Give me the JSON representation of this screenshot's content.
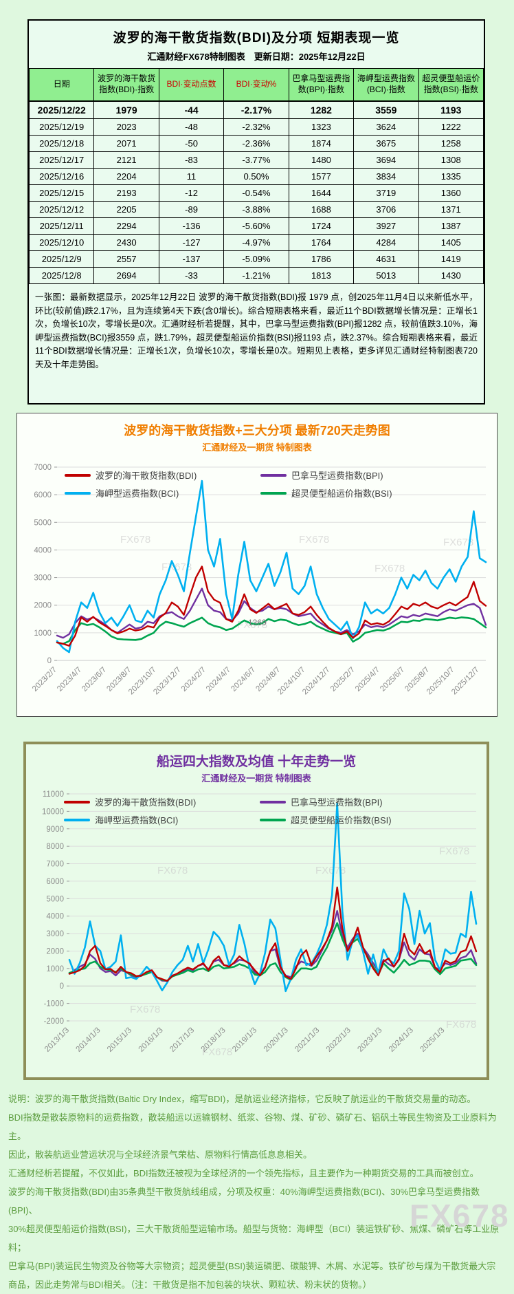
{
  "watermark": "FX678",
  "colors": {
    "page_bg": "#DFF8DF",
    "panel_bg": "#EAFBEF",
    "header_green": "#90EE90",
    "accent_red": "#CC0000",
    "title_orange": "#F07E00",
    "title_purple": "#7030A0",
    "khaki_border": "#8E8E58",
    "footer_green": "#5B9C3E",
    "bdi": "#C00000",
    "bpi": "#7030A0",
    "bci": "#00B0F0",
    "bsi": "#00A550"
  },
  "panel1": {
    "title": "波罗的海干散货指数(BDI)及分项 短期表现一览",
    "subtitle": "汇通财经FX678特制图表　更新日期：2025年12月22日",
    "table": {
      "headers": [
        "日期",
        "波罗的海干散货指数(BDI)·指数",
        "BDI·变动点数",
        "BDI·变动%",
        "巴拿马型运费指数(BPI)·指数",
        "海岬型运费指数(BCI)·指数",
        "超灵便型船运价指数(BSI)·指数"
      ],
      "red_headers": [
        2,
        3
      ],
      "rows": [
        [
          "2025/12/22",
          "1979",
          "-44",
          "-2.17%",
          "1282",
          "3559",
          "1193"
        ],
        [
          "2025/12/19",
          "2023",
          "-48",
          "-2.32%",
          "1323",
          "3624",
          "1222"
        ],
        [
          "2025/12/18",
          "2071",
          "-50",
          "-2.36%",
          "1874",
          "3675",
          "1258"
        ],
        [
          "2025/12/17",
          "2121",
          "-83",
          "-3.77%",
          "1480",
          "3694",
          "1308"
        ],
        [
          "2025/12/16",
          "2204",
          "11",
          "0.50%",
          "1577",
          "3834",
          "1335"
        ],
        [
          "2025/12/15",
          "2193",
          "-12",
          "-0.54%",
          "1644",
          "3719",
          "1360"
        ],
        [
          "2025/12/12",
          "2205",
          "-89",
          "-3.88%",
          "1688",
          "3706",
          "1371"
        ],
        [
          "2025/12/11",
          "2294",
          "-136",
          "-5.60%",
          "1724",
          "3927",
          "1387"
        ],
        [
          "2025/12/10",
          "2430",
          "-127",
          "-4.97%",
          "1764",
          "4284",
          "1405"
        ],
        [
          "2025/12/9",
          "2557",
          "-137",
          "-5.09%",
          "1786",
          "4631",
          "1419"
        ],
        [
          "2025/12/8",
          "2694",
          "-33",
          "-1.21%",
          "1813",
          "5013",
          "1430"
        ]
      ]
    },
    "note": "一张图：最新数据显示，2025年12月22日 波罗的海干散货指数(BDI)报 1979 点，创2025年11月4日以来新低水平，环比(较前值)跌2.17%，且为连续第4天下跌(含0增长)。综合短期表格来看，最近11个BDI数据增长情况是：正增长1次，负增长10次，零增长是0次。汇通财经析若提醒，其中，巴拿马型运费指数(BPI)报1282 点，较前值跌3.10%，海岬型运费指数(BCI)报3559 点，跌1.79%，超灵便型船运价指数(BSI)报1193 点，跌2.37%。综合短期表格来看，最近11个BDI数据增长情况是：正增长1次，负增长10次，零增长是0次。短期见上表格，更多详见汇通财经特制图表720天及十年走势图。"
  },
  "chart_data": [
    {
      "type": "line",
      "title": "波罗的海干散货指数+三大分项 最新720天走势图",
      "subtitle": "汇通财经及一期货 特制图表",
      "ylim": [
        0,
        7000
      ],
      "ytick": 1000,
      "grid": true,
      "legend_position": "top-center",
      "annotation": "1369",
      "xlabels": [
        "2023/2/7",
        "2023/4/7",
        "2023/6/7",
        "2023/8/7",
        "2023/10/7",
        "2023/12/7",
        "2024/2/7",
        "2024/4/7",
        "2024/6/7",
        "2024/8/7",
        "2024/10/7",
        "2024/12/7",
        "2025/2/7",
        "2025/4/7",
        "2025/6/7",
        "2025/8/7",
        "2025/10/7",
        "2025/12/7"
      ],
      "series": [
        {
          "name": "波罗的海干散货指数(BDI)",
          "color": "#C00000",
          "values": [
            650,
            600,
            530,
            900,
            1560,
            1400,
            1580,
            1380,
            1250,
            1100,
            980,
            1050,
            1150,
            1080,
            1120,
            1240,
            1190,
            1550,
            1720,
            2100,
            1950,
            1650,
            2350,
            3000,
            3400,
            2500,
            2200,
            2090,
            1500,
            1400,
            1800,
            2400,
            1850,
            1720,
            1880,
            2050,
            1850,
            1950,
            2050,
            1700,
            1650,
            1750,
            1950,
            1650,
            1400,
            1180,
            1050,
            950,
            1050,
            820,
            980,
            1450,
            1300,
            1350,
            1290,
            1420,
            1680,
            1950,
            1850,
            2050,
            1980,
            2100,
            1950,
            1880,
            2000,
            2100,
            1990,
            2150,
            2300,
            2850,
            2150,
            1979
          ]
        },
        {
          "name": "巴拿马型运费指数(BPI)",
          "color": "#7030A0",
          "values": [
            900,
            820,
            950,
            1350,
            1600,
            1480,
            1560,
            1440,
            1300,
            1100,
            1000,
            1150,
            1300,
            1150,
            1200,
            1400,
            1350,
            1600,
            1700,
            1750,
            1600,
            1500,
            1800,
            2200,
            2600,
            2000,
            1800,
            1750,
            1500,
            1450,
            1700,
            2150,
            1900,
            1750,
            1800,
            1950,
            1850,
            1900,
            1850,
            1700,
            1600,
            1650,
            1700,
            1450,
            1300,
            1150,
            1050,
            1000,
            1100,
            950,
            1050,
            1300,
            1200,
            1250,
            1200,
            1300,
            1450,
            1600,
            1550,
            1650,
            1600,
            1700,
            1650,
            1600,
            1750,
            1850,
            1800,
            1900,
            2000,
            2050,
            1900,
            1282
          ]
        },
        {
          "name": "海岬型运费指数(BCI)",
          "color": "#00B0F0",
          "values": [
            700,
            450,
            300,
            1400,
            2100,
            1900,
            2450,
            1750,
            1350,
            1550,
            1250,
            1600,
            2000,
            1450,
            1380,
            1800,
            1550,
            2400,
            2900,
            3600,
            3100,
            2500,
            3900,
            5200,
            6500,
            4000,
            3400,
            4400,
            2400,
            1500,
            3100,
            4300,
            2900,
            2500,
            3000,
            3500,
            2700,
            3200,
            3900,
            2600,
            2400,
            2700,
            3400,
            2400,
            1900,
            1500,
            1300,
            1100,
            1400,
            800,
            1200,
            2100,
            1700,
            1850,
            1700,
            1900,
            2400,
            3000,
            2600,
            3100,
            2900,
            3250,
            2800,
            2600,
            3000,
            3300,
            2850,
            3400,
            3750,
            5400,
            3700,
            3559
          ]
        },
        {
          "name": "超灵便型船运价指数(BSI)",
          "color": "#00A550",
          "values": [
            650,
            600,
            700,
            1100,
            1350,
            1280,
            1320,
            1200,
            1050,
            870,
            780,
            760,
            750,
            740,
            780,
            900,
            1000,
            1250,
            1400,
            1350,
            1280,
            1220,
            1350,
            1450,
            1550,
            1350,
            1250,
            1200,
            1100,
            1150,
            1300,
            1450,
            1350,
            1300,
            1350,
            1500,
            1420,
            1480,
            1450,
            1350,
            1280,
            1320,
            1400,
            1250,
            1150,
            1050,
            1000,
            950,
            1000,
            680,
            800,
            1000,
            1050,
            1100,
            1080,
            1150,
            1280,
            1400,
            1380,
            1450,
            1430,
            1500,
            1480,
            1450,
            1500,
            1550,
            1520,
            1560,
            1540,
            1500,
            1350,
            1193
          ]
        }
      ]
    },
    {
      "type": "line",
      "title": "船运四大指数及均值 十年走势一览",
      "subtitle": "汇通财经及一期货 特制图表",
      "ylim": [
        -2000,
        11000
      ],
      "ytick": 1000,
      "grid": true,
      "legend_position": "top-center",
      "xlabels": [
        "2013/1/3",
        "2014/1/3",
        "2015/1/3",
        "2016/1/3",
        "2017/1/3",
        "2018/1/3",
        "2019/1/3",
        "2020/1/3",
        "2021/1/3",
        "2022/1/3",
        "2023/1/3",
        "2024/1/3",
        "2025/1/3"
      ],
      "series": [
        {
          "name": "波罗的海干散货指数(BDI)",
          "color": "#C00000",
          "values": [
            700,
            780,
            900,
            1150,
            2000,
            2300,
            1300,
            950,
            980,
            750,
            1100,
            800,
            730,
            560,
            600,
            800,
            900,
            500,
            390,
            290,
            580,
            720,
            900,
            1050,
            950,
            1150,
            1300,
            900,
            1450,
            1700,
            1200,
            1100,
            1350,
            1700,
            1450,
            1270,
            900,
            600,
            1050,
            2000,
            2450,
            1090,
            560,
            400,
            1000,
            1750,
            2050,
            1200,
            1700,
            2100,
            2600,
            3400,
            5650,
            3300,
            2000,
            2550,
            3350,
            2240,
            1550,
            1000,
            600,
            1400,
            1580,
            1100,
            1550,
            3000,
            2090,
            1800,
            2400,
            1850,
            2050,
            1050,
            800,
            1450,
            1300,
            1420,
            1950,
            2050,
            2850,
            1979
          ]
        },
        {
          "name": "巴拿马型运费指数(BPI)",
          "color": "#7030A0",
          "values": [
            700,
            900,
            1100,
            1250,
            1800,
            1550,
            1000,
            800,
            850,
            600,
            900,
            800,
            600,
            500,
            580,
            750,
            900,
            500,
            300,
            290,
            600,
            700,
            850,
            1000,
            900,
            1150,
            1250,
            950,
            1400,
            1500,
            1200,
            1150,
            1300,
            1500,
            1450,
            1300,
            750,
            650,
            1100,
            2000,
            2100,
            1000,
            600,
            500,
            1100,
            1400,
            1300,
            1150,
            1450,
            2000,
            2600,
            3200,
            4300,
            2900,
            2200,
            2700,
            3000,
            2200,
            1800,
            1300,
            850,
            1500,
            1250,
            1100,
            1500,
            2500,
            1750,
            1500,
            2100,
            1850,
            1800,
            1050,
            950,
            1300,
            1200,
            1300,
            1600,
            1700,
            2050,
            1282
          ]
        },
        {
          "name": "海岬型运费指数(BCI)",
          "color": "#00B0F0",
          "values": [
            1500,
            700,
            1300,
            2200,
            3700,
            2300,
            2000,
            950,
            1100,
            1400,
            2900,
            450,
            500,
            400,
            700,
            1100,
            800,
            300,
            -250,
            200,
            800,
            1200,
            1500,
            2300,
            1400,
            2400,
            1300,
            2100,
            3100,
            2800,
            2300,
            1200,
            1800,
            3500,
            2400,
            1000,
            100,
            700,
            1900,
            3800,
            3300,
            1500,
            -300,
            400,
            1500,
            2100,
            1200,
            1300,
            1800,
            2500,
            3500,
            5200,
            10450,
            4300,
            1500,
            2600,
            2900,
            2000,
            700,
            1800,
            700,
            2100,
            1500,
            1300,
            2000,
            5300,
            4400,
            2400,
            4300,
            3000,
            3600,
            1500,
            900,
            2100,
            1850,
            1900,
            3000,
            2800,
            5400,
            3559
          ]
        },
        {
          "name": "超灵便型船运价指数(BSI)",
          "color": "#00A550",
          "values": [
            750,
            850,
            950,
            1000,
            1300,
            1400,
            1100,
            950,
            900,
            800,
            1000,
            800,
            650,
            550,
            600,
            700,
            800,
            500,
            350,
            300,
            550,
            650,
            750,
            900,
            800,
            950,
            1000,
            850,
            1100,
            1200,
            1000,
            1050,
            1100,
            1250,
            1150,
            1000,
            650,
            600,
            800,
            1200,
            1300,
            800,
            500,
            350,
            700,
            1000,
            1000,
            950,
            1100,
            1700,
            2200,
            2900,
            3600,
            2700,
            2000,
            2500,
            2700,
            2100,
            1650,
            1100,
            650,
            1300,
            1000,
            760,
            1100,
            1500,
            1200,
            1300,
            1450,
            1450,
            1400,
            950,
            680,
            1000,
            1080,
            1150,
            1450,
            1500,
            1550,
            1193
          ]
        }
      ]
    }
  ],
  "footer": {
    "lines": [
      "说明：波罗的海干散货指数(Baltic Dry Index，缩写BDI)，是航运业经济指标，它反映了航运业的干散货交易量的动态。",
      "BDI指数是散装原物料的运费指数，散装船运以运输钢材、纸浆、谷物、煤、矿砂、磷矿石、铝矾土等民生物资及工业原料为主。",
      "因此，散装航运业营运状况与全球经济景气荣枯、原物料行情高低息息相关。",
      "汇通财经析若提醒，不仅如此，BDI指数还被视为全球经济的一个领先指标，且主要作为一种期货交易的工具而被创立。",
      "波罗的海干散货指数(BDI)由35条典型干散货航线组成，分项及权重：40%海岬型运费指数(BCI)、30%巴拿马型运费指数(BPI)、",
      "30%超灵便型船运价指数(BSI)，三大干散货船型运输市场。船型与货物：海岬型（BCI）装运铁矿砂、焦煤、磷矿石等工业原料；",
      "巴拿马(BPI)装运民生物资及谷物等大宗物资；超灵便型(BSI)装运磷肥、碳酸钾、木屑、水泥等。铁矿砂与煤为干散货最大宗",
      "商品，因此走势常与BDI相关。（注：干散货是指不加包装的块状、颗粒状、粉末状的货物。）"
    ]
  }
}
